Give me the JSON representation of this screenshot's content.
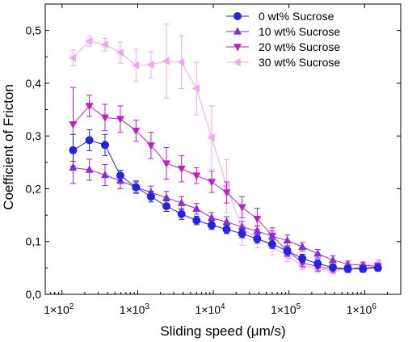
{
  "chart_data": {
    "type": "line",
    "xlabel": "Sliding speed (μm/s)",
    "ylabel": "Coefficient of Fricton",
    "xscale": "log",
    "xlim": [
      60,
      3000000
    ],
    "ylim": [
      0,
      0.55
    ],
    "grid": false,
    "legend_position": "top-right",
    "x_ticks": [
      100,
      1000,
      10000,
      100000,
      1000000
    ],
    "x_tick_labels": [
      {
        "base": "1×10",
        "exp": "2"
      },
      {
        "base": "1×10",
        "exp": "3"
      },
      {
        "base": "1×10",
        "exp": "4"
      },
      {
        "base": "1×10",
        "exp": "5"
      },
      {
        "base": "1×10",
        "exp": "6"
      }
    ],
    "y_ticks": [
      0,
      0.1,
      0.2,
      0.3,
      0.4,
      0.5
    ],
    "y_tick_labels": [
      "0,0",
      "0,1",
      "0,2",
      "0,3",
      "0,4",
      "0,5"
    ],
    "series": [
      {
        "name": "0 wt% Sucrose",
        "color": "#2424e0",
        "marker": "circle",
        "points": [
          {
            "x": 140,
            "y": 0.273,
            "err": 0.03
          },
          {
            "x": 230,
            "y": 0.292,
            "err": 0.02
          },
          {
            "x": 370,
            "y": 0.283,
            "err": 0.02
          },
          {
            "x": 590,
            "y": 0.225,
            "err": 0.01
          },
          {
            "x": 950,
            "y": 0.203,
            "err": 0.01
          },
          {
            "x": 1500,
            "y": 0.185,
            "err": 0.01
          },
          {
            "x": 2400,
            "y": 0.167,
            "err": 0.01
          },
          {
            "x": 3800,
            "y": 0.152,
            "err": 0.01
          },
          {
            "x": 6000,
            "y": 0.14,
            "err": 0.008
          },
          {
            "x": 9500,
            "y": 0.131,
            "err": 0.008
          },
          {
            "x": 15000,
            "y": 0.123,
            "err": 0.008
          },
          {
            "x": 24000,
            "y": 0.115,
            "err": 0.008
          },
          {
            "x": 38000,
            "y": 0.105,
            "err": 0.008
          },
          {
            "x": 60000,
            "y": 0.095,
            "err": 0.008
          },
          {
            "x": 95000,
            "y": 0.082,
            "err": 0.008
          },
          {
            "x": 150000,
            "y": 0.068,
            "err": 0.008
          },
          {
            "x": 240000,
            "y": 0.058,
            "err": 0.008
          },
          {
            "x": 380000,
            "y": 0.051,
            "err": 0.006
          },
          {
            "x": 600000,
            "y": 0.048,
            "err": 0.006
          },
          {
            "x": 950000,
            "y": 0.048,
            "err": 0.006
          },
          {
            "x": 1500000,
            "y": 0.05,
            "err": 0.006
          }
        ]
      },
      {
        "name": "10 wt% Sucrose",
        "color": "#8a2be2",
        "marker": "triangle-up",
        "points": [
          {
            "x": 140,
            "y": 0.24,
            "err": 0.03
          },
          {
            "x": 230,
            "y": 0.236,
            "err": 0.02
          },
          {
            "x": 370,
            "y": 0.226,
            "err": 0.02
          },
          {
            "x": 590,
            "y": 0.215,
            "err": 0.015
          },
          {
            "x": 950,
            "y": 0.203,
            "err": 0.012
          },
          {
            "x": 1500,
            "y": 0.193,
            "err": 0.012
          },
          {
            "x": 2400,
            "y": 0.183,
            "err": 0.012
          },
          {
            "x": 3800,
            "y": 0.173,
            "err": 0.012
          },
          {
            "x": 6000,
            "y": 0.162,
            "err": 0.01
          },
          {
            "x": 9500,
            "y": 0.145,
            "err": 0.01
          },
          {
            "x": 15000,
            "y": 0.137,
            "err": 0.01
          },
          {
            "x": 24000,
            "y": 0.128,
            "err": 0.01
          },
          {
            "x": 38000,
            "y": 0.12,
            "err": 0.01
          },
          {
            "x": 60000,
            "y": 0.11,
            "err": 0.01
          },
          {
            "x": 95000,
            "y": 0.102,
            "err": 0.01
          },
          {
            "x": 150000,
            "y": 0.09,
            "err": 0.008
          },
          {
            "x": 240000,
            "y": 0.077,
            "err": 0.008
          },
          {
            "x": 380000,
            "y": 0.065,
            "err": 0.008
          },
          {
            "x": 600000,
            "y": 0.057,
            "err": 0.006
          },
          {
            "x": 950000,
            "y": 0.055,
            "err": 0.006
          },
          {
            "x": 1500000,
            "y": 0.053,
            "err": 0.006
          }
        ]
      },
      {
        "name": "20 wt% Sucrose",
        "color": "#c21fc2",
        "marker": "triangle-down",
        "points": [
          {
            "x": 140,
            "y": 0.322,
            "err": 0.07
          },
          {
            "x": 230,
            "y": 0.357,
            "err": 0.02
          },
          {
            "x": 370,
            "y": 0.335,
            "err": 0.025
          },
          {
            "x": 590,
            "y": 0.332,
            "err": 0.025
          },
          {
            "x": 950,
            "y": 0.31,
            "err": 0.02
          },
          {
            "x": 1500,
            "y": 0.282,
            "err": 0.025
          },
          {
            "x": 2400,
            "y": 0.248,
            "err": 0.03
          },
          {
            "x": 3800,
            "y": 0.238,
            "err": 0.025
          },
          {
            "x": 6000,
            "y": 0.225,
            "err": 0.015
          },
          {
            "x": 9500,
            "y": 0.213,
            "err": 0.02
          },
          {
            "x": 15000,
            "y": 0.193,
            "err": 0.02
          },
          {
            "x": 24000,
            "y": 0.165,
            "err": 0.02
          },
          {
            "x": 38000,
            "y": 0.143,
            "err": 0.02
          },
          {
            "x": 60000,
            "y": 0.111,
            "err": 0.015
          },
          {
            "x": 95000,
            "y": 0.082,
            "err": 0.01
          },
          {
            "x": 150000,
            "y": 0.06,
            "err": 0.008
          },
          {
            "x": 240000,
            "y": 0.052,
            "err": 0.008
          },
          {
            "x": 380000,
            "y": 0.048,
            "err": 0.006
          },
          {
            "x": 600000,
            "y": 0.048,
            "err": 0.006
          },
          {
            "x": 950000,
            "y": 0.05,
            "err": 0.006
          },
          {
            "x": 1500000,
            "y": 0.052,
            "err": 0.006
          }
        ]
      },
      {
        "name": "30 wt% Sucrose",
        "color": "#f2a6f2",
        "marker": "triangle-left",
        "points": [
          {
            "x": 140,
            "y": 0.448,
            "err": 0.015
          },
          {
            "x": 230,
            "y": 0.48,
            "err": 0.01
          },
          {
            "x": 370,
            "y": 0.473,
            "err": 0.012
          },
          {
            "x": 590,
            "y": 0.458,
            "err": 0.02
          },
          {
            "x": 950,
            "y": 0.434,
            "err": 0.03
          },
          {
            "x": 1500,
            "y": 0.435,
            "err": 0.025
          },
          {
            "x": 2400,
            "y": 0.442,
            "err": 0.07
          },
          {
            "x": 3800,
            "y": 0.44,
            "err": 0.05
          },
          {
            "x": 6000,
            "y": 0.39,
            "err": 0.05
          },
          {
            "x": 9500,
            "y": 0.297,
            "err": 0.06
          },
          {
            "x": 15000,
            "y": 0.205,
            "err": 0.05
          },
          {
            "x": 24000,
            "y": 0.123,
            "err": 0.03
          },
          {
            "x": 38000,
            "y": 0.108,
            "err": 0.02
          },
          {
            "x": 60000,
            "y": 0.09,
            "err": 0.015
          },
          {
            "x": 95000,
            "y": 0.072,
            "err": 0.01
          },
          {
            "x": 150000,
            "y": 0.055,
            "err": 0.008
          },
          {
            "x": 240000,
            "y": 0.048,
            "err": 0.006
          },
          {
            "x": 380000,
            "y": 0.045,
            "err": 0.006
          },
          {
            "x": 600000,
            "y": 0.047,
            "err": 0.006
          },
          {
            "x": 950000,
            "y": 0.053,
            "err": 0.006
          },
          {
            "x": 1500000,
            "y": 0.06,
            "err": 0.006
          }
        ]
      }
    ]
  }
}
